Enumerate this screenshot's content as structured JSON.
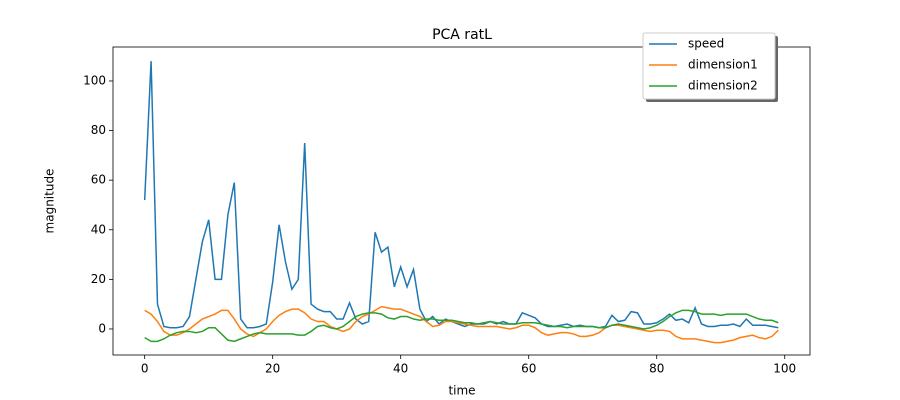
{
  "chart_data": {
    "type": "line",
    "title": "PCA ratL",
    "x_label": "time",
    "y_label": "magnitude",
    "x": [
      0,
      1,
      2,
      3,
      4,
      5,
      6,
      7,
      8,
      9,
      10,
      11,
      12,
      13,
      14,
      15,
      16,
      17,
      18,
      19,
      20,
      21,
      22,
      23,
      24,
      25,
      26,
      27,
      28,
      29,
      30,
      31,
      32,
      33,
      34,
      35,
      36,
      37,
      38,
      39,
      40,
      41,
      42,
      43,
      44,
      45,
      46,
      47,
      48,
      49,
      50,
      51,
      52,
      53,
      54,
      55,
      56,
      57,
      58,
      59,
      60,
      61,
      62,
      63,
      64,
      65,
      66,
      67,
      68,
      69,
      70,
      71,
      72,
      73,
      74,
      75,
      76,
      77,
      78,
      79,
      80,
      81,
      82,
      83,
      84,
      85,
      86,
      87,
      88,
      89,
      90,
      91,
      92,
      93,
      94,
      95,
      96,
      97,
      98,
      99
    ],
    "series": [
      {
        "name": "speed",
        "color": "#1f77b4",
        "values": [
          52,
          108,
          10,
          1,
          0.5,
          0.5,
          1,
          5,
          20,
          35,
          44,
          20,
          20,
          46,
          59,
          4,
          0.5,
          0.5,
          1,
          2,
          19,
          42,
          27,
          16,
          20,
          75,
          10,
          8,
          7,
          7,
          4,
          4,
          10.5,
          4,
          2,
          3,
          39,
          31,
          33,
          17,
          25,
          17,
          24,
          8,
          3,
          5,
          2,
          4,
          3,
          2,
          1,
          2,
          2,
          2,
          3,
          2,
          3,
          2,
          2,
          6.5,
          5.5,
          4.5,
          2,
          1,
          1,
          1.5,
          2,
          1,
          1.5,
          1,
          1,
          0.5,
          1,
          5.5,
          3,
          3.5,
          7,
          6.5,
          2,
          2,
          2.5,
          4,
          6,
          3.5,
          4,
          2.5,
          8.5,
          2,
          1,
          1,
          1.5,
          1.5,
          2,
          1,
          4,
          1.5,
          1.5,
          1.5,
          1,
          0.5
        ]
      },
      {
        "name": "dimension1",
        "color": "#ff7f0e",
        "values": [
          7.5,
          6,
          3,
          -1,
          -2.5,
          -2.5,
          -1.5,
          0,
          2,
          4,
          5,
          6,
          7.5,
          7.5,
          4,
          0,
          -2,
          -3,
          -1.5,
          0,
          3,
          5.5,
          7,
          8,
          8,
          6.5,
          4,
          3,
          3,
          1,
          0,
          -1,
          0,
          3,
          5,
          6,
          7.5,
          9,
          8.5,
          8,
          8,
          7,
          6,
          5,
          3,
          1,
          1.5,
          3,
          3,
          2.5,
          2,
          1.5,
          1,
          1,
          1,
          1,
          0.5,
          0,
          0.5,
          1.5,
          1.5,
          0.5,
          -1.5,
          -2.5,
          -2,
          -1.5,
          -1.5,
          -2,
          -3,
          -3,
          -2.5,
          -1.5,
          0.5,
          1.5,
          1.5,
          1,
          0.5,
          0,
          -0.5,
          -1,
          -0.5,
          -0.5,
          -1,
          -3,
          -4,
          -4,
          -4,
          -4.5,
          -5,
          -5.5,
          -5.5,
          -5,
          -4.5,
          -3.5,
          -3,
          -2.5,
          -3.5,
          -4,
          -3,
          -0.5
        ]
      },
      {
        "name": "dimension2",
        "color": "#2ca02c",
        "values": [
          -3.5,
          -5,
          -5,
          -4,
          -2.5,
          -1.5,
          -1,
          -1,
          -1.5,
          -1,
          0.5,
          0.5,
          -2,
          -4.5,
          -5,
          -4,
          -3,
          -2,
          -1.5,
          -2,
          -2,
          -2,
          -2,
          -2,
          -2.5,
          -2.5,
          -1,
          1,
          1.5,
          0.5,
          0,
          1,
          3,
          5,
          6,
          6.5,
          6.5,
          6,
          4.5,
          4,
          5,
          5,
          4,
          3.5,
          4,
          4,
          3.5,
          3.5,
          3.5,
          3,
          2.5,
          2.5,
          2,
          2.5,
          3,
          2.5,
          2,
          2,
          2,
          2.5,
          2.5,
          2.5,
          2,
          1.5,
          1,
          1,
          0.5,
          1,
          1,
          1,
          1,
          0.5,
          0.5,
          1.5,
          2,
          1.5,
          1,
          0.5,
          0,
          0.5,
          1.5,
          3,
          5,
          6.5,
          7.5,
          7.5,
          7,
          6,
          6,
          6,
          5.5,
          6,
          6,
          6,
          6,
          5,
          4,
          3.5,
          3.5,
          2.5
        ]
      }
    ],
    "xlim": [
      -4.95,
      103.95
    ],
    "xticks": [
      0,
      20,
      40,
      60,
      80,
      100
    ],
    "ylim": [
      -10.5,
      113.7
    ],
    "yticks": [
      0,
      20,
      40,
      60,
      80,
      100
    ],
    "grid": false,
    "legend": "upper right"
  }
}
